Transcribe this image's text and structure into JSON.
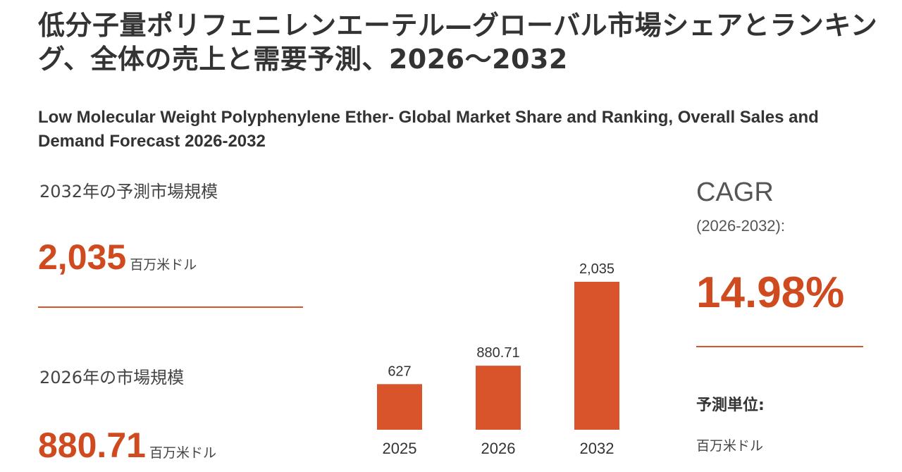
{
  "header": {
    "title_ja": "低分子量ポリフェニレンエーテル—グローバル市場シェアとランキング、全体の売上と需要予測、2026～2032",
    "title_en": "Low Molecular Weight Polyphenylene Ether- Global Market Share and Ranking, Overall Sales and Demand Forecast 2026-2032"
  },
  "left": {
    "forecast_label": "2032年の予測市場規模",
    "forecast_value": "2,035",
    "forecast_unit": "百万米ドル",
    "current_label": "2026年の市場規模",
    "current_value": "880.71",
    "current_unit": "百万米ドル"
  },
  "right": {
    "cagr_label": "CAGR",
    "cagr_period": "(2026-2032):",
    "cagr_value": "14.98%",
    "unit_label": "予測単位:",
    "unit_value": "百万米ドル"
  },
  "colors": {
    "accent": "#d04a20",
    "bar": "#d9532b",
    "text": "#333333"
  },
  "chart_data": {
    "type": "bar",
    "categories": [
      "2025",
      "2026",
      "2032"
    ],
    "values": [
      627,
      880.71,
      2035
    ],
    "value_labels": [
      "627",
      "880.71",
      "2,035"
    ],
    "title": "",
    "xlabel": "",
    "ylabel": "",
    "ylim": [
      0,
      2035
    ],
    "grid": false,
    "legend": "none"
  }
}
